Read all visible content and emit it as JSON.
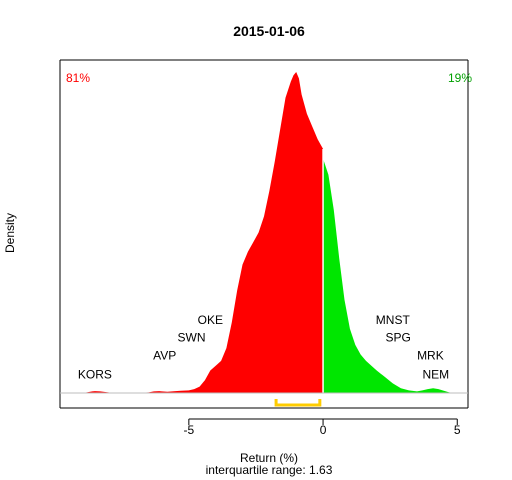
{
  "chart_data": {
    "type": "area",
    "title": "2015-01-06",
    "xlabel": "Return (%)",
    "subtitle": "interquartile range: 1.63",
    "ylabel": "Density",
    "xlim": [
      -9.8,
      5.4
    ],
    "ylim": [
      0,
      1.0
    ],
    "x_ticks": [
      -5,
      0,
      5
    ],
    "x_tick_labels": [
      "-5",
      "0",
      "5"
    ],
    "iqr": [
      -1.75,
      -0.12
    ],
    "annotations": {
      "left_pct": "81%",
      "right_pct": "19%"
    },
    "colors": {
      "negative": "#ff0000",
      "positive": "#00e600",
      "iqr": "#ffcc00",
      "baseline": "#bebebe"
    },
    "density": {
      "x": [
        -9.0,
        -8.8,
        -8.6,
        -8.5,
        -8.3,
        -8.0,
        -7.8,
        -7.0,
        -6.5,
        -6.3,
        -6.1,
        -6.0,
        -5.8,
        -5.5,
        -5.3,
        -5.0,
        -4.8,
        -4.6,
        -4.4,
        -4.2,
        -4.0,
        -3.8,
        -3.6,
        -3.4,
        -3.2,
        -3.0,
        -2.8,
        -2.6,
        -2.4,
        -2.2,
        -2.0,
        -1.8,
        -1.6,
        -1.4,
        -1.2,
        -1.1,
        -1.0,
        -0.9,
        -0.8,
        -0.6,
        -0.4,
        -0.2,
        0.0,
        0.0,
        0.2,
        0.4,
        0.6,
        0.8,
        1.0,
        1.2,
        1.4,
        1.6,
        1.8,
        2.0,
        2.3,
        2.6,
        2.9,
        3.2,
        3.5,
        3.7,
        3.9,
        4.1,
        4.3,
        4.5,
        4.7,
        4.9
      ],
      "y": [
        0.0,
        0.002,
        0.005,
        0.006,
        0.005,
        0.002,
        0.0,
        0.0,
        0.002,
        0.005,
        0.006,
        0.005,
        0.004,
        0.006,
        0.007,
        0.008,
        0.012,
        0.02,
        0.04,
        0.07,
        0.085,
        0.1,
        0.14,
        0.22,
        0.32,
        0.4,
        0.44,
        0.47,
        0.5,
        0.55,
        0.63,
        0.72,
        0.82,
        0.92,
        0.97,
        0.99,
        1.0,
        0.98,
        0.93,
        0.87,
        0.83,
        0.79,
        0.76,
        0.73,
        0.68,
        0.57,
        0.42,
        0.29,
        0.2,
        0.15,
        0.12,
        0.1,
        0.085,
        0.07,
        0.05,
        0.03,
        0.015,
        0.008,
        0.005,
        0.008,
        0.012,
        0.015,
        0.012,
        0.007,
        0.002,
        0.0
      ]
    },
    "stock_labels": [
      {
        "text": "KORS",
        "x": -8.5,
        "y": 0.045
      },
      {
        "text": "AVP",
        "x": -5.9,
        "y": 0.105
      },
      {
        "text": "SWN",
        "x": -4.9,
        "y": 0.16
      },
      {
        "text": "OKE",
        "x": -4.2,
        "y": 0.215
      },
      {
        "text": "MNST",
        "x": 2.6,
        "y": 0.215
      },
      {
        "text": "SPG",
        "x": 2.8,
        "y": 0.16
      },
      {
        "text": "MRK",
        "x": 4.0,
        "y": 0.105
      },
      {
        "text": "NEM",
        "x": 4.2,
        "y": 0.045
      }
    ]
  }
}
